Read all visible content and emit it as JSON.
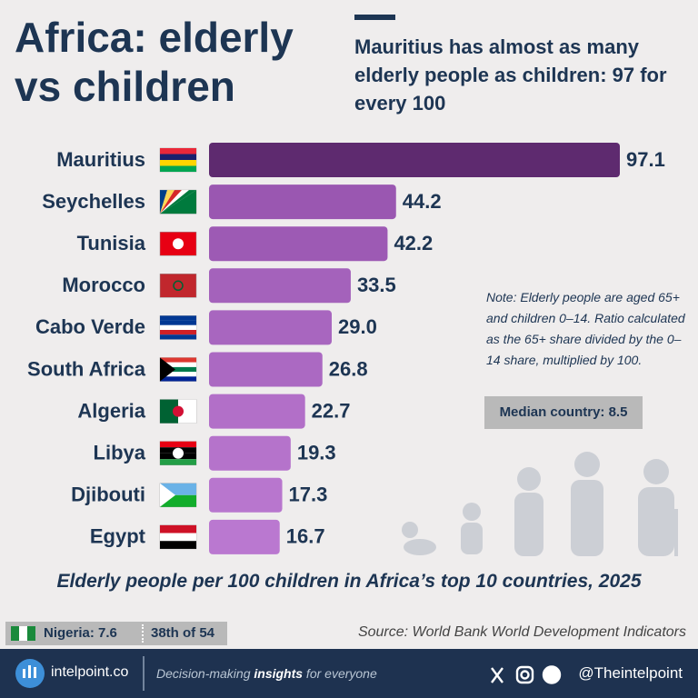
{
  "chart_data": {
    "type": "bar",
    "title": "Africa: elderly vs children",
    "subtitle": "Mauritius has almost as many elderly people as children: 97 for every 100",
    "categories": [
      "Mauritius",
      "Seychelles",
      "Tunisia",
      "Morocco",
      "Cabo Verde",
      "South Africa",
      "Algeria",
      "Libya",
      "Djibouti",
      "Egypt"
    ],
    "values": [
      97.1,
      44.2,
      42.2,
      33.5,
      29.0,
      26.8,
      22.7,
      19.3,
      17.3,
      16.7
    ],
    "value_labels": [
      "97.1",
      "44.2",
      "42.2",
      "33.5",
      "29.0",
      "26.8",
      "22.7",
      "19.3",
      "17.3",
      "16.7"
    ],
    "colors": [
      "#5e2a6f",
      "#9a57b1",
      "#9d5ab4",
      "#a462bb",
      "#a866bf",
      "#ab69c2",
      "#b26fc8",
      "#b573cb",
      "#b876ce",
      "#ba78d0"
    ],
    "note": "Note: Elderly people are aged 65+ and children 0–14. Ratio calculated as the 65+ share divided by the 0–14 share, multiplied by 100.",
    "median_label": "Median country: 8.5",
    "caption": "Elderly people per 100 children in Africa’s top 10 countries, 2025",
    "nigeria": {
      "label": "Nigeria: 7.6",
      "rank": "38th of 54"
    },
    "source": "Source: World Bank World Development Indicators",
    "footer": {
      "site": "intelpoint.co",
      "tagline": [
        "Decision-making ",
        "insights",
        " for everyone"
      ],
      "handle": "@Theintelpoint"
    }
  }
}
